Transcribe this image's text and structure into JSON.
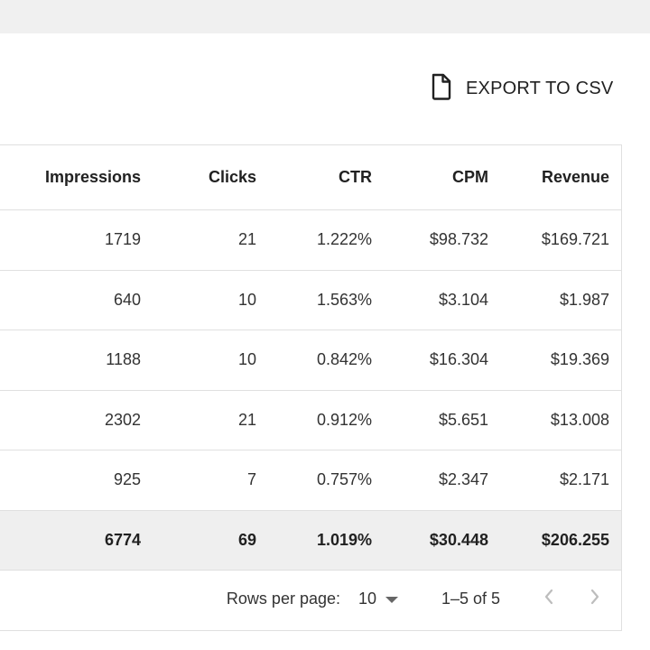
{
  "toolbar": {
    "export_label": "EXPORT TO CSV",
    "export_icon": "file-icon"
  },
  "table": {
    "columns": [
      "Impressions",
      "Clicks",
      "CTR",
      "CPM",
      "Revenue"
    ],
    "rows": [
      {
        "impressions": "1719",
        "clicks": "21",
        "ctr": "1.222%",
        "cpm": "$98.732",
        "revenue": "$169.721"
      },
      {
        "impressions": "640",
        "clicks": "10",
        "ctr": "1.563%",
        "cpm": "$3.104",
        "revenue": "$1.987"
      },
      {
        "impressions": "1188",
        "clicks": "10",
        "ctr": "0.842%",
        "cpm": "$16.304",
        "revenue": "$19.369"
      },
      {
        "impressions": "2302",
        "clicks": "21",
        "ctr": "0.912%",
        "cpm": "$5.651",
        "revenue": "$13.008"
      },
      {
        "impressions": "925",
        "clicks": "7",
        "ctr": "0.757%",
        "cpm": "$2.347",
        "revenue": "$2.171"
      }
    ],
    "total": {
      "impressions": "6774",
      "clicks": "69",
      "ctr": "1.019%",
      "cpm": "$30.448",
      "revenue": "$206.255"
    }
  },
  "pagination": {
    "rows_per_page_label": "Rows per page:",
    "rows_per_page_value": "10",
    "range_text": "1–5 of 5",
    "prev_icon": "chevron-left-icon",
    "next_icon": "chevron-right-icon"
  },
  "colors": {
    "background": "#f0f0f0",
    "card": "#ffffff",
    "border": "#e0e0e0",
    "total_row": "#efefef",
    "disabled_icon": "#bdbdbd"
  }
}
